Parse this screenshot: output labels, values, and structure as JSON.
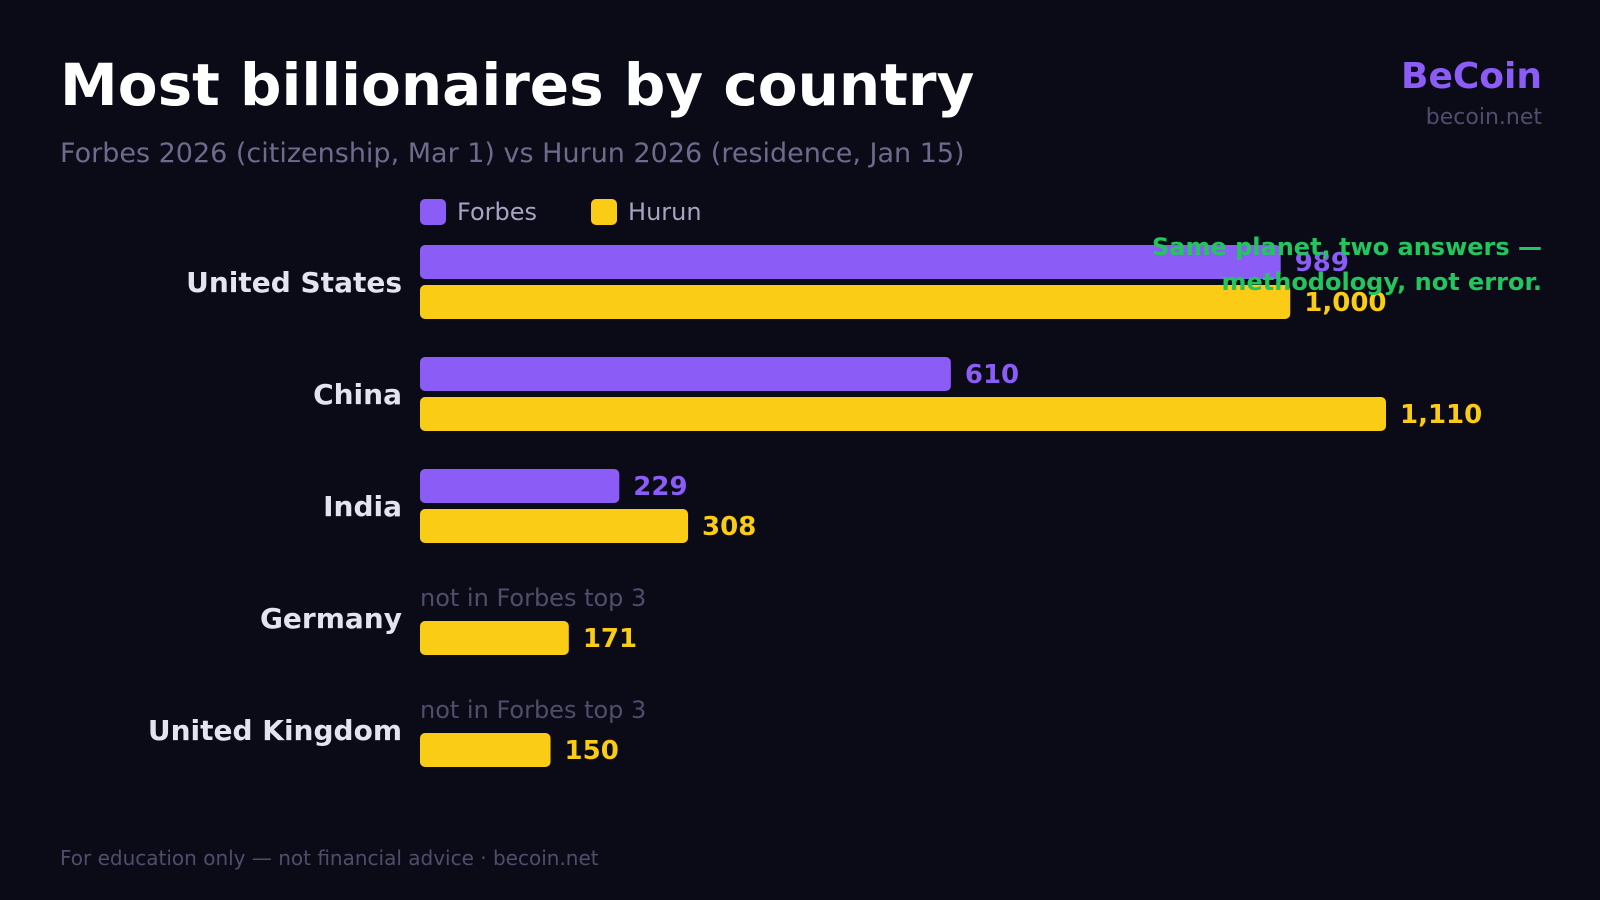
{
  "header": {
    "title": "Most billionaires by country",
    "subtitle": "Forbes 2026 (citizenship, Mar 1) vs Hurun 2026 (residence, Jan 15)"
  },
  "brand": {
    "name": "BeCoin",
    "url": "becoin.net"
  },
  "annotation": {
    "line1": "Same planet, two answers —",
    "line2": "methodology, not error."
  },
  "footer": {
    "text": "For education only — not financial advice · becoin.net"
  },
  "colors": {
    "background": "#0b0b17",
    "forbes": "#8b5cf6",
    "hurun": "#facc15",
    "annotation": "#22c55e",
    "muted": "#4f4d6b",
    "category_label": "#e4e4f0"
  },
  "chart_data": {
    "type": "bar",
    "orientation": "horizontal",
    "categories": [
      "United States",
      "China",
      "India",
      "Germany",
      "United Kingdom"
    ],
    "series": [
      {
        "name": "Forbes",
        "color": "#8b5cf6",
        "values": [
          989,
          610,
          229,
          null,
          null
        ],
        "labels": [
          "989",
          "610",
          "229",
          "not in Forbes top 3",
          "not in Forbes top 3"
        ]
      },
      {
        "name": "Hurun",
        "color": "#facc15",
        "values": [
          1000,
          1110,
          308,
          171,
          150
        ],
        "labels": [
          "1,000",
          "1,110",
          "308",
          "171",
          "150"
        ]
      }
    ],
    "xlim": [
      0,
      1110
    ],
    "grid": false,
    "legend_position": "top-left"
  }
}
